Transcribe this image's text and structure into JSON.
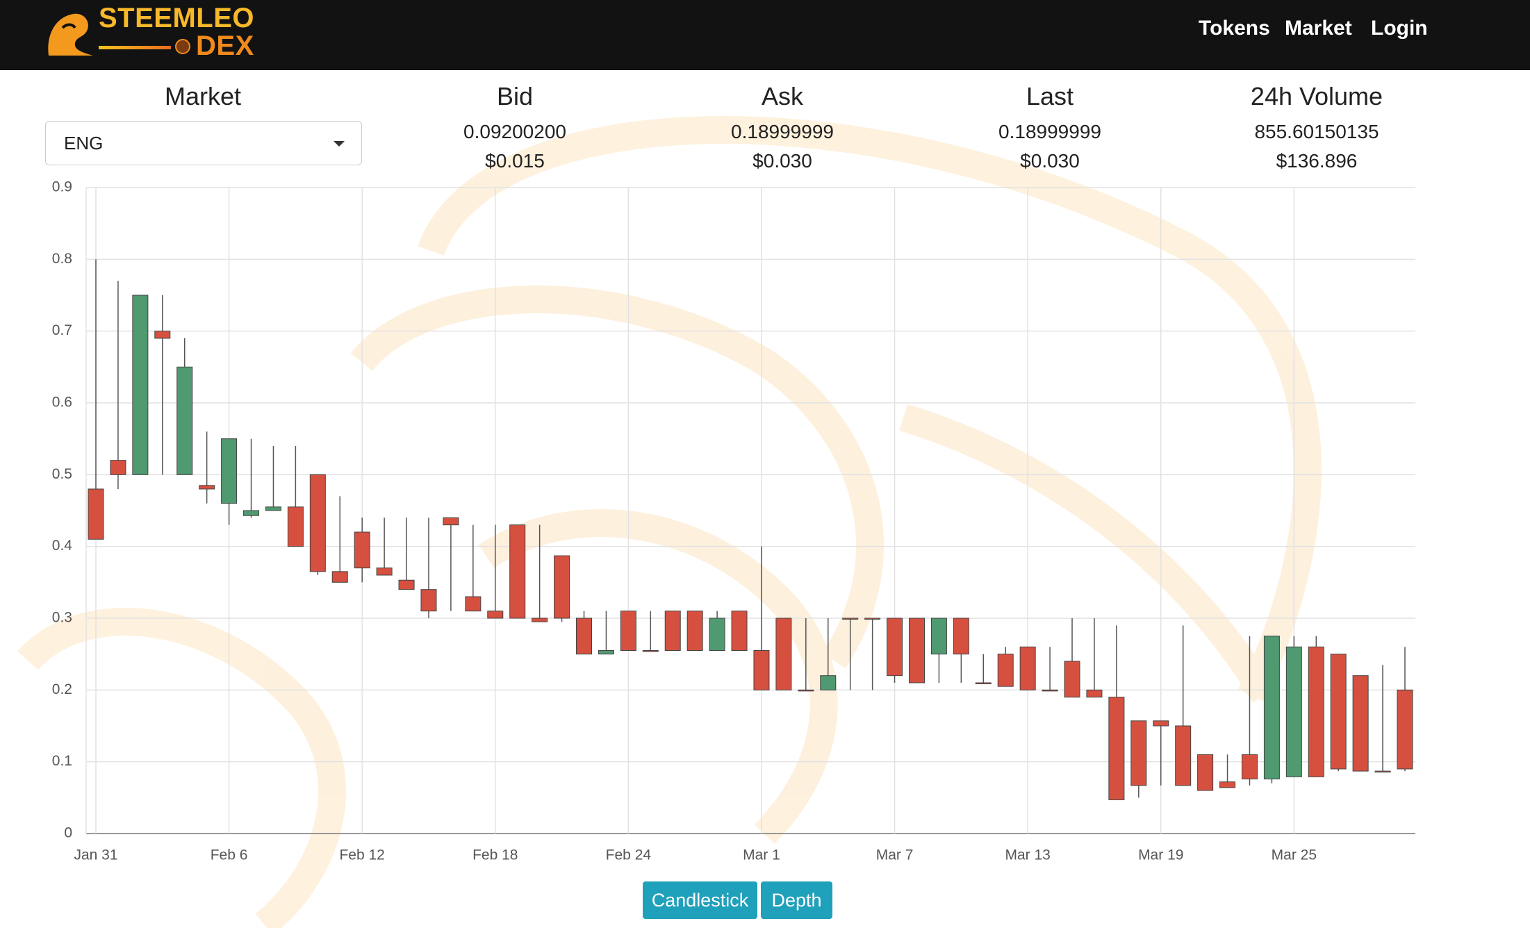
{
  "nav": {
    "brand": "STEEMLEO",
    "brand_suffix": "DEX",
    "links": [
      "Tokens",
      "Market",
      "Login"
    ]
  },
  "stats": {
    "market_label": "Market",
    "market_selected": "ENG",
    "columns": [
      {
        "label": "Bid",
        "value": "0.09200200",
        "usd": "$0.015"
      },
      {
        "label": "Ask",
        "value": "0.18999999",
        "usd": "$0.030"
      },
      {
        "label": "Last",
        "value": "0.18999999",
        "usd": "$0.030"
      },
      {
        "label": "24h Volume",
        "value": "855.60150135",
        "usd": "$136.896"
      }
    ]
  },
  "chart_data": {
    "type": "candlestick",
    "categories": [
      "Jan 31",
      null,
      null,
      null,
      null,
      null,
      "Feb 6",
      null,
      null,
      null,
      null,
      null,
      "Feb 12",
      null,
      null,
      null,
      null,
      null,
      "Feb 18",
      null,
      null,
      null,
      null,
      null,
      "Feb 24",
      null,
      null,
      null,
      null,
      null,
      "Mar 1",
      null,
      null,
      null,
      null,
      null,
      "Mar 7",
      null,
      null,
      null,
      null,
      null,
      "Mar 13",
      null,
      null,
      null,
      null,
      null,
      "Mar 19",
      null,
      null,
      null,
      null,
      null,
      "Mar 25",
      null,
      null,
      null,
      null,
      null
    ],
    "open": [
      0.48,
      0.52,
      0.5,
      0.7,
      0.5,
      0.485,
      0.46,
      0.443,
      0.45,
      0.455,
      0.5,
      0.365,
      0.42,
      0.37,
      0.353,
      0.34,
      0.44,
      0.33,
      0.31,
      0.43,
      0.3,
      0.387,
      0.3,
      0.25,
      0.31,
      0.255,
      0.31,
      0.31,
      0.255,
      0.31,
      0.255,
      0.3,
      0.2,
      0.2,
      0.3,
      0.3,
      0.3,
      0.3,
      0.25,
      0.3,
      0.21,
      0.25,
      0.26,
      0.2,
      0.24,
      0.2,
      0.19,
      0.157,
      0.157,
      0.15,
      0.11,
      0.072,
      0.11,
      0.076,
      0.079,
      0.26,
      0.25,
      0.22,
      0.087,
      0.2
    ],
    "high": [
      0.8,
      0.77,
      0.75,
      0.75,
      0.69,
      0.56,
      0.55,
      0.55,
      0.54,
      0.54,
      0.5,
      0.47,
      0.44,
      0.44,
      0.44,
      0.44,
      0.44,
      0.43,
      0.43,
      0.43,
      0.43,
      0.387,
      0.31,
      0.31,
      0.31,
      0.31,
      0.31,
      0.31,
      0.31,
      0.31,
      0.4,
      0.3,
      0.3,
      0.3,
      0.3,
      0.3,
      0.3,
      0.3,
      0.3,
      0.3,
      0.25,
      0.26,
      0.26,
      0.26,
      0.3,
      0.3,
      0.29,
      0.157,
      0.157,
      0.29,
      0.11,
      0.11,
      0.275,
      0.275,
      0.275,
      0.275,
      0.25,
      0.22,
      0.235,
      0.26
    ],
    "low": [
      0.41,
      0.48,
      0.5,
      0.5,
      0.5,
      0.46,
      0.43,
      0.44,
      0.45,
      0.4,
      0.36,
      0.35,
      0.35,
      0.36,
      0.34,
      0.3,
      0.31,
      0.31,
      0.3,
      0.3,
      0.295,
      0.295,
      0.25,
      0.25,
      0.255,
      0.255,
      0.255,
      0.255,
      0.255,
      0.255,
      0.2,
      0.2,
      0.2,
      0.2,
      0.2,
      0.2,
      0.21,
      0.21,
      0.21,
      0.21,
      0.21,
      0.205,
      0.2,
      0.2,
      0.19,
      0.19,
      0.047,
      0.05,
      0.067,
      0.067,
      0.06,
      0.064,
      0.067,
      0.07,
      0.079,
      0.079,
      0.087,
      0.087,
      0.087,
      0.087
    ],
    "close": [
      0.41,
      0.5,
      0.75,
      0.69,
      0.65,
      0.48,
      0.55,
      0.45,
      0.455,
      0.4,
      0.365,
      0.35,
      0.37,
      0.36,
      0.34,
      0.31,
      0.43,
      0.31,
      0.3,
      0.3,
      0.295,
      0.3,
      0.25,
      0.255,
      0.255,
      0.255,
      0.255,
      0.255,
      0.3,
      0.255,
      0.2,
      0.2,
      0.2,
      0.22,
      0.3,
      0.3,
      0.22,
      0.21,
      0.3,
      0.25,
      0.21,
      0.205,
      0.2,
      0.2,
      0.19,
      0.19,
      0.047,
      0.067,
      0.15,
      0.067,
      0.06,
      0.064,
      0.076,
      0.275,
      0.26,
      0.079,
      0.09,
      0.087,
      0.087,
      0.09
    ],
    "colors": {
      "up": "#4f9a70",
      "down": "#d6503f"
    },
    "ylim": [
      0,
      0.9
    ],
    "yticks": [
      0,
      0.1,
      0.2,
      0.3,
      0.4,
      0.5,
      0.6,
      0.7,
      0.8,
      0.9
    ],
    "grid": true
  },
  "buttons": [
    "Candlestick",
    "Depth"
  ]
}
